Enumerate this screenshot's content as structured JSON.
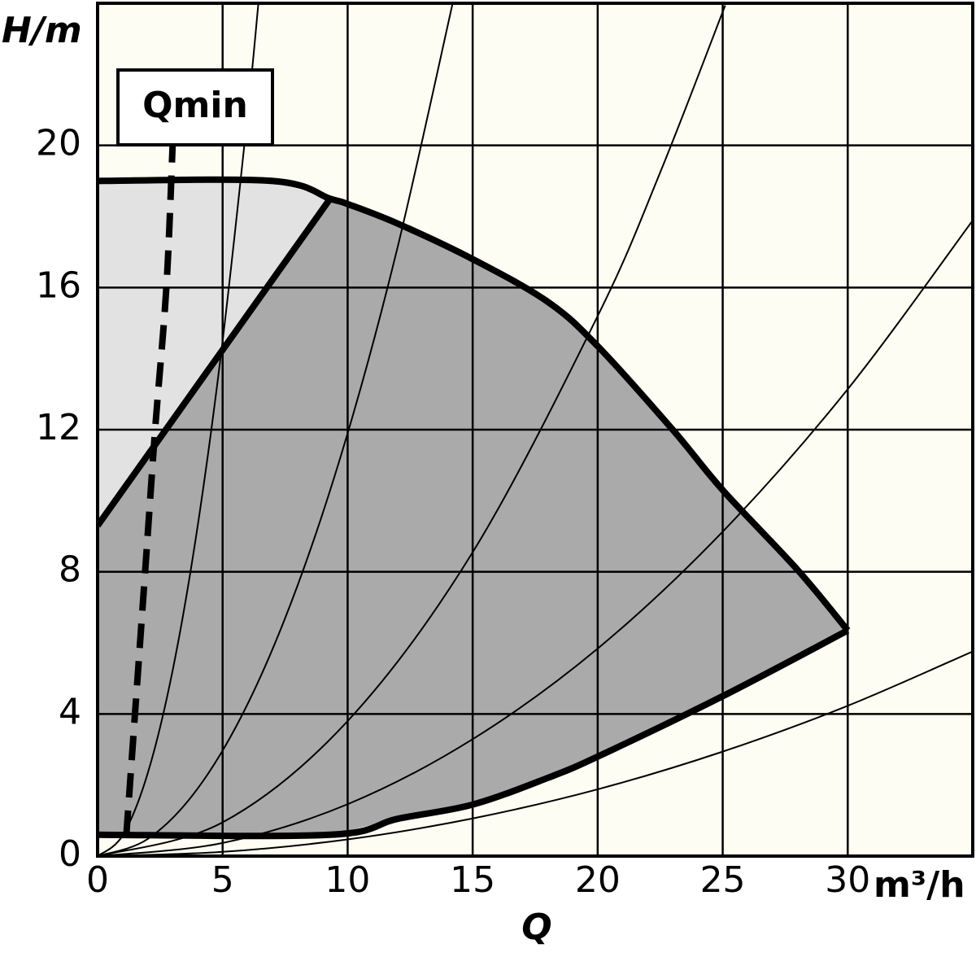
{
  "chart_data": {
    "type": "line",
    "x_label": "Q",
    "y_label": "H/m",
    "x_unit": "m³/h",
    "annotation": "Qmin",
    "xlim": [
      0,
      35
    ],
    "ylim": [
      0,
      24
    ],
    "xticks": [
      0,
      5,
      10,
      15,
      20,
      25,
      30
    ],
    "yticks": [
      0,
      4,
      8,
      12,
      16,
      20
    ],
    "grid": true,
    "background": "#fdfdf3",
    "area_colors": [
      "#e2e2e2",
      "#aaaaaa"
    ],
    "series": [
      {
        "style": "thick",
        "color": "#000000",
        "x": [
          0,
          7,
          9.3,
          10,
          12,
          15,
          18,
          20,
          23,
          25,
          28,
          30
        ],
        "values": [
          19,
          19,
          18.5,
          18.35,
          17.8,
          16.8,
          15.6,
          14.35,
          12.0,
          10.3,
          8.05,
          6.35
        ]
      },
      {
        "style": "thick",
        "color": "#000000",
        "x": [
          0,
          9.3,
          12,
          15,
          18,
          20,
          25,
          30
        ],
        "values": [
          0.6,
          0.6,
          1.05,
          1.45,
          2.2,
          2.8,
          4.5,
          6.35
        ]
      },
      {
        "style": "thick",
        "color": "#000000",
        "x": [
          0,
          9.3
        ],
        "values": [
          9.3,
          18.5
        ]
      },
      {
        "style": "dashed",
        "color": "#000000",
        "x": [
          1.15,
          1.9,
          2.3,
          2.75,
          3.0
        ],
        "values": [
          0.6,
          8,
          12,
          16,
          20
        ]
      },
      {
        "style": "thin",
        "color": "#000000",
        "x": [
          0,
          1,
          2,
          3,
          4,
          5,
          6,
          6.43
        ],
        "values": [
          0,
          0.58,
          2.32,
          5.22,
          9.28,
          14.5,
          20.88,
          24
        ]
      },
      {
        "style": "thin",
        "color": "#000000",
        "x": [
          0,
          2,
          4,
          6,
          8,
          10,
          12,
          14.2
        ],
        "values": [
          0,
          0.48,
          1.9,
          4.28,
          7.62,
          11.9,
          17.14,
          24
        ]
      },
      {
        "style": "thin",
        "color": "#000000",
        "x": [
          0,
          5,
          10,
          15,
          20,
          22.5,
          25.1
        ],
        "values": [
          0,
          0.95,
          3.8,
          8.55,
          15.2,
          19.24,
          23.94
        ]
      },
      {
        "style": "thin",
        "color": "#000000",
        "x": [
          0,
          5,
          10,
          15,
          20,
          25,
          30,
          35
        ],
        "values": [
          0,
          0.37,
          1.46,
          3.29,
          5.84,
          9.13,
          13.14,
          17.89
        ]
      },
      {
        "style": "thin",
        "color": "#000000",
        "x": [
          0,
          5,
          10,
          15,
          20,
          25,
          30,
          35
        ],
        "values": [
          0,
          0.12,
          0.47,
          1.06,
          1.88,
          2.94,
          4.23,
          5.76
        ]
      }
    ]
  }
}
